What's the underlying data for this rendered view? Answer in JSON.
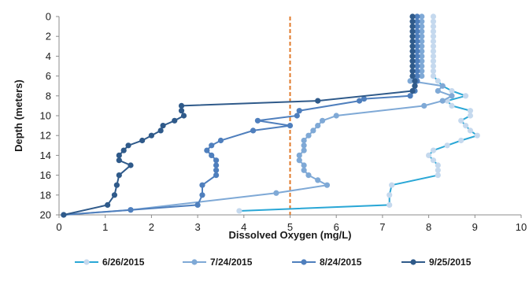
{
  "chart_data": {
    "type": "line",
    "title": "",
    "xlabel": "Dissolved Oxygen (mg/L)",
    "ylabel": "Depth (meters)",
    "xlim": [
      0,
      10
    ],
    "ylim": [
      0,
      20
    ],
    "y_inverted": true,
    "x_ticks": [
      "0",
      "1",
      "2",
      "3",
      "4",
      "5",
      "6",
      "7",
      "8",
      "9",
      "10"
    ],
    "y_ticks": [
      "0",
      "2",
      "4",
      "6",
      "8",
      "10",
      "12",
      "14",
      "16",
      "18",
      "20"
    ],
    "grid": false,
    "legend_position": "bottom",
    "reference_line": {
      "x": 5,
      "color": "#e07a2a",
      "style": "dashed"
    },
    "series": [
      {
        "name": "6/26/2015",
        "color": "#c5d9ee",
        "line_color": "#2aa7d6",
        "points": [
          [
            8.1,
            0
          ],
          [
            8.1,
            0.5
          ],
          [
            8.1,
            1
          ],
          [
            8.1,
            1.5
          ],
          [
            8.1,
            2
          ],
          [
            8.1,
            2.5
          ],
          [
            8.1,
            3
          ],
          [
            8.1,
            3.5
          ],
          [
            8.1,
            4
          ],
          [
            8.1,
            4.5
          ],
          [
            8.1,
            5
          ],
          [
            8.1,
            5.5
          ],
          [
            8.1,
            6
          ],
          [
            8.2,
            6.5
          ],
          [
            8.3,
            7
          ],
          [
            8.5,
            7.5
          ],
          [
            8.8,
            8
          ],
          [
            8.4,
            8.5
          ],
          [
            8.5,
            9
          ],
          [
            8.9,
            9.5
          ],
          [
            8.9,
            10
          ],
          [
            8.7,
            10.5
          ],
          [
            8.8,
            11
          ],
          [
            8.9,
            11.5
          ],
          [
            9.05,
            12
          ],
          [
            8.7,
            12.5
          ],
          [
            8.4,
            13
          ],
          [
            8.1,
            13.5
          ],
          [
            8.0,
            14
          ],
          [
            8.1,
            14.5
          ],
          [
            8.2,
            15
          ],
          [
            8.2,
            15.5
          ],
          [
            8.2,
            16
          ],
          [
            7.2,
            17
          ],
          [
            7.15,
            18
          ],
          [
            7.15,
            19
          ],
          [
            3.9,
            19.6
          ]
        ]
      },
      {
        "name": "7/24/2015",
        "color": "#7fa9d6",
        "line_color": "#7fa9d6",
        "points": [
          [
            7.85,
            0
          ],
          [
            7.85,
            0.5
          ],
          [
            7.85,
            1
          ],
          [
            7.85,
            1.5
          ],
          [
            7.85,
            2
          ],
          [
            7.85,
            2.5
          ],
          [
            7.85,
            3
          ],
          [
            7.85,
            3.5
          ],
          [
            7.85,
            4
          ],
          [
            7.85,
            4.5
          ],
          [
            7.85,
            5
          ],
          [
            7.85,
            5.5
          ],
          [
            7.85,
            6
          ],
          [
            7.6,
            6.5
          ],
          [
            8.3,
            7
          ],
          [
            8.2,
            7.5
          ],
          [
            8.5,
            8
          ],
          [
            8.3,
            8.5
          ],
          [
            7.9,
            9
          ],
          [
            6.0,
            10
          ],
          [
            5.7,
            10.5
          ],
          [
            5.6,
            11
          ],
          [
            5.5,
            11.5
          ],
          [
            5.4,
            12
          ],
          [
            5.3,
            12.5
          ],
          [
            5.3,
            13
          ],
          [
            5.3,
            13.5
          ],
          [
            5.2,
            14
          ],
          [
            5.2,
            14.5
          ],
          [
            5.3,
            15
          ],
          [
            5.3,
            15.5
          ],
          [
            5.4,
            16
          ],
          [
            5.6,
            16.5
          ],
          [
            5.8,
            17
          ],
          [
            4.7,
            17.8
          ],
          [
            1.55,
            19.5
          ],
          [
            0.1,
            20
          ]
        ]
      },
      {
        "name": "8/24/2015",
        "color": "#4f7fbd",
        "line_color": "#4f7fbd",
        "points": [
          [
            7.75,
            0
          ],
          [
            7.75,
            0.5
          ],
          [
            7.75,
            1
          ],
          [
            7.75,
            1.5
          ],
          [
            7.75,
            2
          ],
          [
            7.75,
            2.5
          ],
          [
            7.75,
            3
          ],
          [
            7.75,
            3.5
          ],
          [
            7.75,
            4
          ],
          [
            7.75,
            4.5
          ],
          [
            7.75,
            5
          ],
          [
            7.75,
            5.5
          ],
          [
            7.75,
            6
          ],
          [
            7.75,
            6.5
          ],
          [
            7.7,
            7
          ],
          [
            7.7,
            7.5
          ],
          [
            7.6,
            8
          ],
          [
            6.6,
            8.3
          ],
          [
            6.5,
            8.5
          ],
          [
            5.2,
            9.5
          ],
          [
            5.15,
            10
          ],
          [
            4.3,
            10.5
          ],
          [
            5.0,
            11
          ],
          [
            4.2,
            11.5
          ],
          [
            3.5,
            12.5
          ],
          [
            3.3,
            13
          ],
          [
            3.2,
            13.5
          ],
          [
            3.3,
            14
          ],
          [
            3.4,
            14.5
          ],
          [
            3.4,
            15
          ],
          [
            3.4,
            15.5
          ],
          [
            3.4,
            16
          ],
          [
            3.1,
            17
          ],
          [
            3.1,
            18
          ],
          [
            3.0,
            19
          ],
          [
            1.55,
            19.5
          ],
          [
            0.1,
            20
          ]
        ]
      },
      {
        "name": "9/25/2015",
        "color": "#2f5a8a",
        "line_color": "#2f5a8a",
        "points": [
          [
            7.65,
            0
          ],
          [
            7.65,
            0.5
          ],
          [
            7.65,
            1
          ],
          [
            7.65,
            1.5
          ],
          [
            7.65,
            2
          ],
          [
            7.65,
            2.5
          ],
          [
            7.65,
            3
          ],
          [
            7.65,
            3.5
          ],
          [
            7.65,
            4
          ],
          [
            7.65,
            4.5
          ],
          [
            7.65,
            5
          ],
          [
            7.65,
            5.5
          ],
          [
            7.65,
            6
          ],
          [
            7.7,
            6.5
          ],
          [
            7.7,
            7
          ],
          [
            7.65,
            7.5
          ],
          [
            5.6,
            8.5
          ],
          [
            2.65,
            9
          ],
          [
            2.65,
            9.5
          ],
          [
            2.7,
            10
          ],
          [
            2.5,
            10.5
          ],
          [
            2.25,
            11
          ],
          [
            2.2,
            11.5
          ],
          [
            2.0,
            12
          ],
          [
            1.8,
            12.5
          ],
          [
            1.5,
            13
          ],
          [
            1.4,
            13.5
          ],
          [
            1.3,
            14
          ],
          [
            1.3,
            14.5
          ],
          [
            1.55,
            15
          ],
          [
            1.3,
            16
          ],
          [
            1.25,
            17
          ],
          [
            1.2,
            18
          ],
          [
            1.05,
            19
          ],
          [
            0.1,
            20
          ]
        ]
      }
    ]
  }
}
